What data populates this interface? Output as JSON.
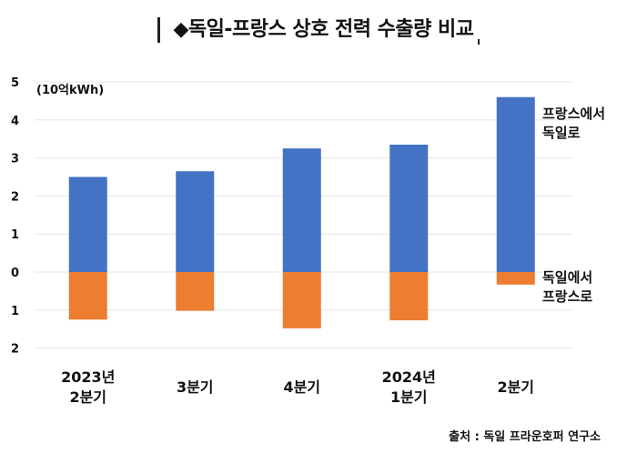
{
  "title": "◆독일-프랑스 상호 전력 수출량 비교",
  "unit": "(10억kWh)",
  "source": "출처 : 독일 프라운호퍼 연구소",
  "chart_data": {
    "type": "bar",
    "stacked": true,
    "categories": [
      "2023년\n2분기",
      "3분기",
      "4분기",
      "2024년\n1분기",
      "2분기"
    ],
    "series": [
      {
        "name": "프랑스에서\n독일로",
        "color": "#4472C4",
        "values": [
          2.5,
          2.65,
          3.25,
          3.35,
          4.6
        ]
      },
      {
        "name": "독일에서\n프랑스로",
        "color": "#ED7D31",
        "values": [
          -1.25,
          -1.02,
          -1.48,
          -1.27,
          -0.33
        ]
      }
    ],
    "y_tick_labels": [
      "5",
      "4",
      "3",
      "2",
      "1",
      "0",
      "1",
      "2"
    ],
    "y_tick_values": [
      5,
      4,
      3,
      2,
      1,
      0,
      -1,
      -2
    ],
    "ylim": [
      -2,
      5
    ],
    "grid": true,
    "legend": "inline-right"
  }
}
